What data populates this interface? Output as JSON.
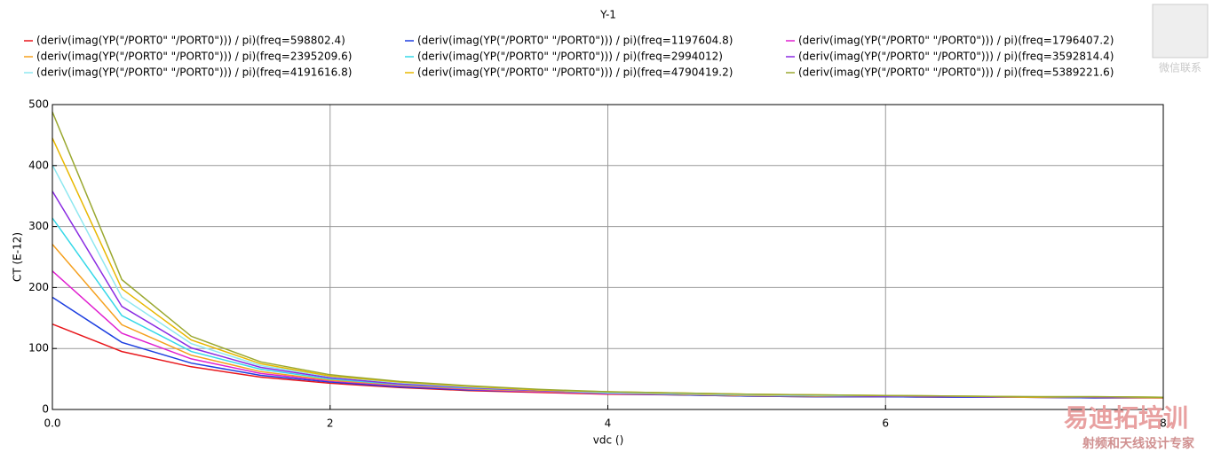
{
  "chart_data": {
    "type": "line",
    "title": "Y-1",
    "x_label": "vdc ()",
    "y_label": "CT (E-12)",
    "x": [
      0,
      0.5,
      1,
      1.5,
      2,
      2.5,
      3,
      3.5,
      4,
      4.5,
      5,
      5.5,
      6,
      6.5,
      7,
      7.5,
      8
    ],
    "xlim": [
      0,
      8
    ],
    "xticks": [
      {
        "value": 0,
        "label": "0.0"
      },
      2,
      4,
      6,
      8
    ],
    "ylim": [
      0,
      500
    ],
    "yticks": [
      0,
      100,
      200,
      300,
      400,
      500
    ],
    "grid": true,
    "series": [
      {
        "name": "(deriv(imag(YP(\"/PORT0\" \"/PORT0\"))) / pi)(freq=598802.4)",
        "color": "#e8161b",
        "values": [
          140,
          95,
          70,
          53,
          43,
          36,
          31,
          28,
          25,
          24,
          22,
          21,
          21,
          20,
          20,
          19,
          19
        ]
      },
      {
        "name": "(deriv(imag(YP(\"/PORT0\" \"/PORT0\"))) / pi)(freq=1197604.8)",
        "color": "#1d3fe0",
        "values": [
          184,
          110,
          76,
          56,
          45,
          37,
          32,
          29,
          26,
          24,
          22,
          21,
          21,
          20,
          20,
          19,
          19
        ]
      },
      {
        "name": "(deriv(imag(YP(\"/PORT0\" \"/PORT0\"))) / pi)(freq=1796407.2)",
        "color": "#e020d0",
        "values": [
          227,
          125,
          83,
          59,
          47,
          39,
          33,
          29,
          26,
          25,
          23,
          22,
          22,
          21,
          20,
          20,
          19
        ]
      },
      {
        "name": "(deriv(imag(YP(\"/PORT0\" \"/PORT0\"))) / pi)(freq=2395209.6)",
        "color": "#f5a01e",
        "values": [
          271,
          139,
          89,
          62,
          48,
          40,
          34,
          30,
          27,
          25,
          23,
          22,
          22,
          21,
          20,
          20,
          19
        ]
      },
      {
        "name": "(deriv(imag(YP(\"/PORT0\" \"/PORT0\"))) / pi)(freq=2994012)",
        "color": "#36d8e8",
        "values": [
          314,
          154,
          95,
          66,
          50,
          41,
          35,
          31,
          27,
          26,
          24,
          23,
          22,
          21,
          21,
          20,
          20
        ]
      },
      {
        "name": "(deriv(imag(YP(\"/PORT0\" \"/PORT0\"))) / pi)(freq=3592814.4)",
        "color": "#8a2be2",
        "values": [
          358,
          169,
          101,
          69,
          52,
          42,
          36,
          31,
          28,
          26,
          24,
          23,
          22,
          21,
          21,
          20,
          20
        ]
      },
      {
        "name": "(deriv(imag(YP(\"/PORT0\" \"/PORT0\"))) / pi)(freq=4191616.8)",
        "color": "#8fe8f0",
        "values": [
          401,
          184,
          108,
          72,
          54,
          44,
          37,
          32,
          28,
          26,
          24,
          23,
          23,
          22,
          21,
          21,
          20
        ]
      },
      {
        "name": "(deriv(imag(YP(\"/PORT0\" \"/PORT0\"))) / pi)(freq=4790419.2)",
        "color": "#e8b800",
        "values": [
          445,
          198,
          114,
          75,
          55,
          45,
          38,
          32,
          29,
          27,
          25,
          24,
          23,
          22,
          21,
          21,
          20
        ]
      },
      {
        "name": "(deriv(imag(YP(\"/PORT0\" \"/PORT0\"))) / pi)(freq=5389221.6)",
        "color": "#9aa830",
        "values": [
          488,
          213,
          120,
          78,
          57,
          46,
          39,
          33,
          29,
          27,
          25,
          24,
          23,
          22,
          21,
          21,
          20
        ]
      }
    ]
  },
  "watermark": {
    "wechat": "微信联系",
    "brand": "易迪拓培训",
    "slogan": "射频和天线设计专家"
  }
}
